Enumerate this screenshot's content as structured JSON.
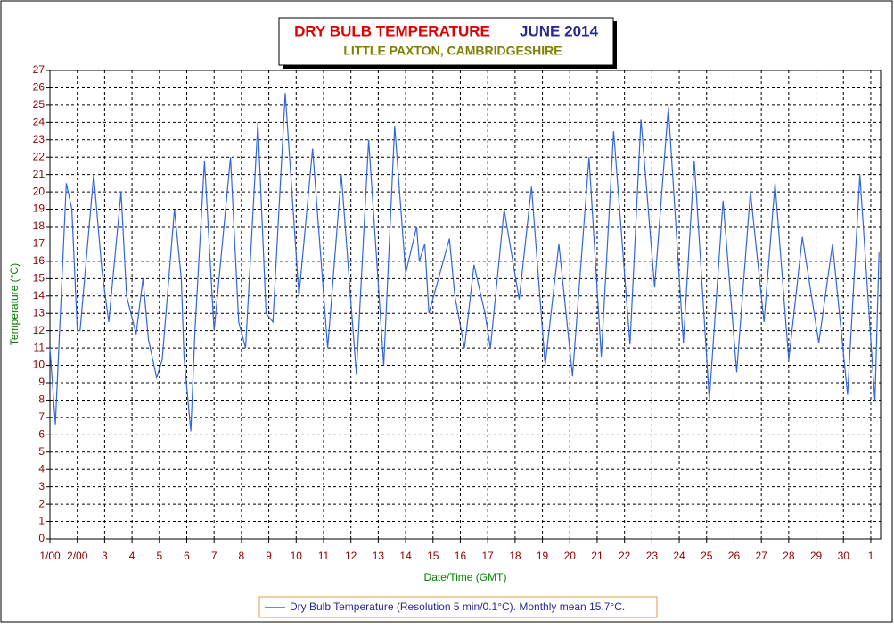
{
  "chart_data": {
    "type": "line",
    "title": "DRY BULB TEMPERATURE",
    "title_date": "JUNE 2014",
    "subtitle": "LITTLE PAXTON, CAMBRIDGESHIRE",
    "x_label": "Date/Time (GMT)",
    "y_label": "Temperature (°C)",
    "xlim": [
      1,
      31.36
    ],
    "xticks": [
      {
        "value": 1,
        "label": "1/00"
      },
      {
        "value": 2,
        "label": "2/00"
      },
      3,
      4,
      5,
      6,
      7,
      8,
      9,
      10,
      11,
      12,
      13,
      14,
      15,
      16,
      17,
      18,
      19,
      20,
      21,
      22,
      23,
      24,
      25,
      26,
      27,
      28,
      29,
      30,
      {
        "value": 31,
        "label": "1"
      }
    ],
    "ylim": [
      0,
      27
    ],
    "yticks": [
      0,
      1,
      2,
      3,
      4,
      5,
      6,
      7,
      8,
      9,
      10,
      11,
      12,
      13,
      14,
      15,
      16,
      17,
      18,
      19,
      20,
      21,
      22,
      23,
      24,
      25,
      26,
      27
    ],
    "grid": true,
    "x": [
      1.0,
      1.2,
      1.6,
      1.8,
      2.0,
      2.1,
      2.6,
      2.9,
      3.15,
      3.6,
      3.8,
      4.15,
      4.4,
      4.6,
      4.9,
      5.1,
      5.55,
      5.8,
      5.9,
      6.15,
      6.3,
      6.65,
      7.0,
      7.6,
      7.9,
      8.15,
      8.6,
      8.9,
      9.15,
      9.6,
      10.1,
      10.6,
      11.15,
      11.65,
      12.2,
      12.65,
      13.2,
      13.6,
      14.0,
      14.4,
      14.5,
      14.7,
      14.85,
      15.6,
      15.8,
      16.15,
      16.5,
      16.9,
      17.1,
      17.6,
      18.15,
      18.6,
      19.1,
      19.6,
      20.1,
      20.7,
      21.15,
      21.6,
      22.2,
      22.6,
      23.1,
      23.6,
      24.15,
      24.55,
      25.1,
      25.6,
      26.1,
      26.6,
      27.1,
      27.5,
      28.0,
      28.5,
      29.1,
      29.6,
      30.15,
      30.6,
      31.15,
      31.3
    ],
    "series": [
      {
        "name": "Dry Bulb Temperature (Resolution 5 min/0.1°C). Monthly mean 15.7°C.",
        "color": "#3366dd",
        "values": [
          11,
          6.6,
          20.5,
          19,
          12,
          12,
          21,
          15.5,
          12.5,
          20,
          14,
          11.8,
          15,
          11.5,
          9.3,
          10.3,
          19,
          15,
          10.5,
          6.2,
          12,
          21.8,
          12,
          22,
          12.5,
          11,
          24,
          13,
          12.5,
          25.7,
          14,
          22.5,
          11,
          21,
          9.5,
          23,
          10,
          23.8,
          15.3,
          18,
          16,
          17,
          13,
          17.3,
          14,
          11,
          15.8,
          13,
          11,
          19,
          13.8,
          20.3,
          10,
          17,
          9.4,
          22,
          10.5,
          23.5,
          11.2,
          24.2,
          14.5,
          24.9,
          11.3,
          21.8,
          8,
          19.5,
          9.6,
          20,
          12.5,
          20.5,
          10.3,
          17.4,
          11.3,
          17,
          8.3,
          21,
          7.9,
          16.5
        ]
      }
    ]
  }
}
